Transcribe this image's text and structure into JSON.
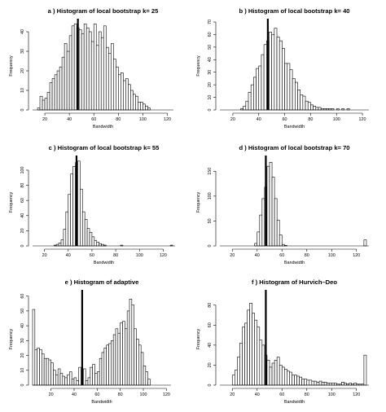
{
  "figure": {
    "panels": [
      {
        "title": "a ) Histogram of local bootstrap k= 25",
        "xlabel": "Bandwidth",
        "ylabel": "Frequency"
      },
      {
        "title": "b ) Histogram of local bootstrap k= 40",
        "xlabel": "Bandwidth",
        "ylabel": "Frequency"
      },
      {
        "title": "c ) Histogram of local bootstrap k= 55",
        "xlabel": "Bandwidth",
        "ylabel": "Frequency"
      },
      {
        "title": "d ) Histogram of local bootstrap k= 70",
        "xlabel": "Bandwidth",
        "ylabel": "Frequency"
      },
      {
        "title": "e ) Histogram of adaptive",
        "xlabel": "Bandwidth",
        "ylabel": "Frequency"
      },
      {
        "title": "f ) Histogram of Hurvich–Deo",
        "xlabel": "Bandwidth",
        "ylabel": "Frequency"
      }
    ]
  },
  "chart_data": [
    {
      "type": "bar",
      "title": "a ) Histogram of local bootstrap k= 25",
      "xlabel": "Bandwidth",
      "ylabel": "Frequency",
      "xlim": [
        10,
        125
      ],
      "ylim": [
        0,
        45
      ],
      "xticks": [
        20,
        40,
        60,
        80,
        100,
        120
      ],
      "yticks": [
        0,
        10,
        20,
        30,
        40
      ],
      "bin_start": 10,
      "bin_width": 2,
      "reference_line": 47,
      "values": [
        0,
        0,
        1,
        7,
        5,
        6,
        9,
        14,
        16,
        18,
        20,
        22,
        27,
        34,
        30,
        38,
        43,
        44,
        42,
        41,
        39,
        44,
        42,
        40,
        35,
        44,
        33,
        40,
        37,
        43,
        32,
        29,
        34,
        26,
        22,
        18,
        19,
        15,
        16,
        13,
        10,
        8,
        7,
        4,
        4,
        3,
        2,
        1,
        0,
        0,
        0,
        0,
        0,
        0,
        0,
        0,
        0,
        0,
        0
      ]
    },
    {
      "type": "bar",
      "title": "b ) Histogram of local bootstrap k= 40",
      "xlabel": "Bandwidth",
      "ylabel": "Frequency",
      "xlim": [
        10,
        125
      ],
      "ylim": [
        0,
        70
      ],
      "xticks": [
        20,
        40,
        60,
        80,
        100,
        120
      ],
      "yticks": [
        0,
        10,
        20,
        30,
        40,
        50,
        60,
        70
      ],
      "bin_start": 10,
      "bin_width": 2,
      "reference_line": 47,
      "values": [
        0,
        0,
        0,
        0,
        0,
        0,
        0,
        0,
        1,
        3,
        7,
        14,
        20,
        26,
        33,
        35,
        44,
        52,
        55,
        62,
        60,
        65,
        58,
        55,
        49,
        37,
        37,
        32,
        25,
        22,
        16,
        12,
        11,
        7,
        6,
        4,
        3,
        2,
        2,
        1,
        1,
        1,
        1,
        1,
        0,
        1,
        0,
        1,
        0,
        1,
        0,
        0,
        0,
        0,
        0,
        0,
        0,
        0
      ]
    },
    {
      "type": "bar",
      "title": "c ) Histogram of local bootstrap k= 55",
      "xlabel": "Bandwidth",
      "ylabel": "Frequency",
      "xlim": [
        10,
        130
      ],
      "ylim": [
        0,
        115
      ],
      "xticks": [
        20,
        40,
        60,
        80,
        100,
        120
      ],
      "yticks": [
        0,
        20,
        40,
        60,
        80,
        100
      ],
      "bin_start": 10,
      "bin_width": 2,
      "reference_line": 47,
      "values": [
        0,
        0,
        0,
        0,
        0,
        0,
        0,
        0,
        0,
        1,
        2,
        4,
        8,
        22,
        45,
        68,
        95,
        105,
        110,
        112,
        75,
        45,
        35,
        23,
        18,
        12,
        7,
        5,
        3,
        2,
        1,
        0,
        0,
        0,
        0,
        0,
        0,
        1,
        0,
        0,
        0,
        0,
        0,
        0,
        0,
        0,
        0,
        0,
        0,
        0,
        0,
        0,
        0,
        0,
        0,
        0,
        0,
        0,
        1
      ]
    },
    {
      "type": "bar",
      "title": "d ) Histogram of local bootstrap k= 70",
      "xlabel": "Bandwidth",
      "ylabel": "Frequency",
      "xlim": [
        10,
        130
      ],
      "ylim": [
        0,
        175
      ],
      "xticks": [
        20,
        40,
        60,
        80,
        100,
        120
      ],
      "yticks": [
        0,
        50,
        100,
        150
      ],
      "bin_start": 10,
      "bin_width": 2,
      "reference_line": 47,
      "values": [
        0,
        0,
        0,
        0,
        0,
        0,
        0,
        0,
        0,
        0,
        0,
        0,
        0,
        0,
        5,
        28,
        62,
        95,
        118,
        160,
        168,
        138,
        95,
        52,
        22,
        3,
        1,
        0,
        0,
        0,
        0,
        0,
        0,
        0,
        0,
        0,
        0,
        0,
        0,
        0,
        0,
        0,
        0,
        0,
        0,
        0,
        0,
        0,
        0,
        0,
        0,
        0,
        0,
        0,
        0,
        0,
        0,
        0,
        12
      ]
    },
    {
      "type": "bar",
      "title": "e ) Histogram of adaptive",
      "xlabel": "Bandwidth",
      "ylabel": "Frequency",
      "xlim": [
        4,
        124
      ],
      "ylim": [
        0,
        62
      ],
      "xticks": [
        20,
        40,
        60,
        80,
        100,
        120
      ],
      "yticks": [
        0,
        10,
        20,
        30,
        40,
        50,
        60
      ],
      "bin_start": 4,
      "bin_width": 2,
      "reference_line": 47,
      "values": [
        51,
        24,
        25,
        24,
        21,
        18,
        18,
        17,
        15,
        10,
        7,
        11,
        8,
        6,
        5,
        7,
        9,
        4,
        5,
        3,
        12,
        10,
        11,
        3,
        5,
        12,
        14,
        8,
        9,
        18,
        22,
        25,
        27,
        28,
        30,
        34,
        38,
        35,
        42,
        43,
        38,
        50,
        58,
        54,
        38,
        31,
        27,
        22,
        13,
        9,
        4,
        0,
        0,
        0,
        0,
        0,
        0,
        0,
        0,
        0
      ]
    },
    {
      "type": "bar",
      "title": "f ) Histogram of Hurvich–Deo",
      "xlabel": "Bandwidth",
      "ylabel": "Frequency",
      "xlim": [
        10,
        130
      ],
      "ylim": [
        0,
        92
      ],
      "xticks": [
        20,
        40,
        60,
        80,
        100,
        120
      ],
      "yticks": [
        0,
        20,
        40,
        60,
        80
      ],
      "bin_start": 10,
      "bin_width": 2,
      "reference_line": 47,
      "values": [
        0,
        0,
        0,
        0,
        0,
        10,
        15,
        28,
        42,
        58,
        62,
        75,
        82,
        72,
        65,
        58,
        45,
        40,
        30,
        25,
        18,
        22,
        25,
        28,
        20,
        18,
        16,
        14,
        13,
        10,
        10,
        9,
        8,
        6,
        6,
        5,
        5,
        4,
        4,
        3,
        4,
        3,
        3,
        2,
        2,
        2,
        2,
        1,
        1,
        3,
        2,
        1,
        2,
        1,
        2,
        1,
        1,
        1,
        30
      ]
    }
  ]
}
